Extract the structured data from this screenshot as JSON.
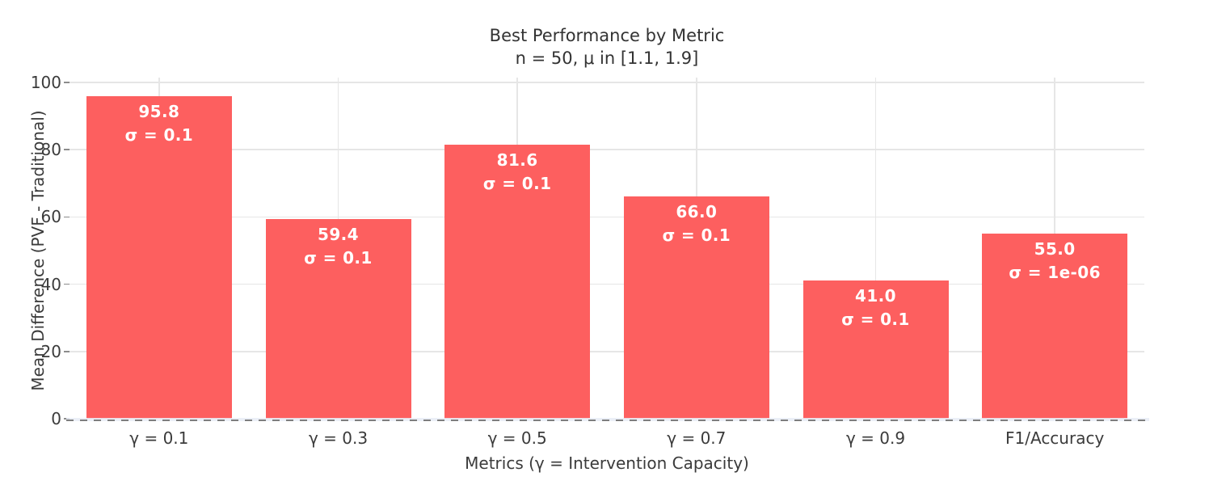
{
  "chart_data": {
    "type": "bar",
    "title": "Best Performance by Metric",
    "subtitle": "n = 50, μ in [1.1, 1.9]",
    "xlabel": "Metrics (γ = Intervention Capacity)",
    "ylabel": "Mean Difference (PVF - Traditional)",
    "categories": [
      "γ = 0.1",
      "γ = 0.3",
      "γ = 0.5",
      "γ = 0.7",
      "γ = 0.9",
      "F1/Accuracy"
    ],
    "values": [
      95.8,
      59.4,
      81.6,
      66.0,
      41.0,
      55.0
    ],
    "bar_labels": [
      {
        "value_label": "95.8",
        "sigma_label": "σ = 0.1"
      },
      {
        "value_label": "59.4",
        "sigma_label": "σ = 0.1"
      },
      {
        "value_label": "81.6",
        "sigma_label": "σ = 0.1"
      },
      {
        "value_label": "66.0",
        "sigma_label": "σ = 0.1"
      },
      {
        "value_label": "41.0",
        "sigma_label": "σ = 0.1"
      },
      {
        "value_label": "55.0",
        "sigma_label": "σ = 1e-06"
      }
    ],
    "ylim": [
      0,
      100
    ],
    "yticks": [
      0,
      20,
      40,
      60,
      80,
      100
    ],
    "grid": true,
    "legend": "none",
    "zeroline_style": "dashed",
    "colors": {
      "bar": "#FD5F5F",
      "bar_label_text": "#FFFFFF",
      "gridline": "#E6E6E6",
      "tick_text": "#3B3B3B",
      "title_text": "#333333",
      "tick_mark": "#8C8C8C",
      "zeroline_dash": "#7E7E7E",
      "zeroline_band": "#E7ECF6",
      "background": "#FFFFFF"
    }
  }
}
